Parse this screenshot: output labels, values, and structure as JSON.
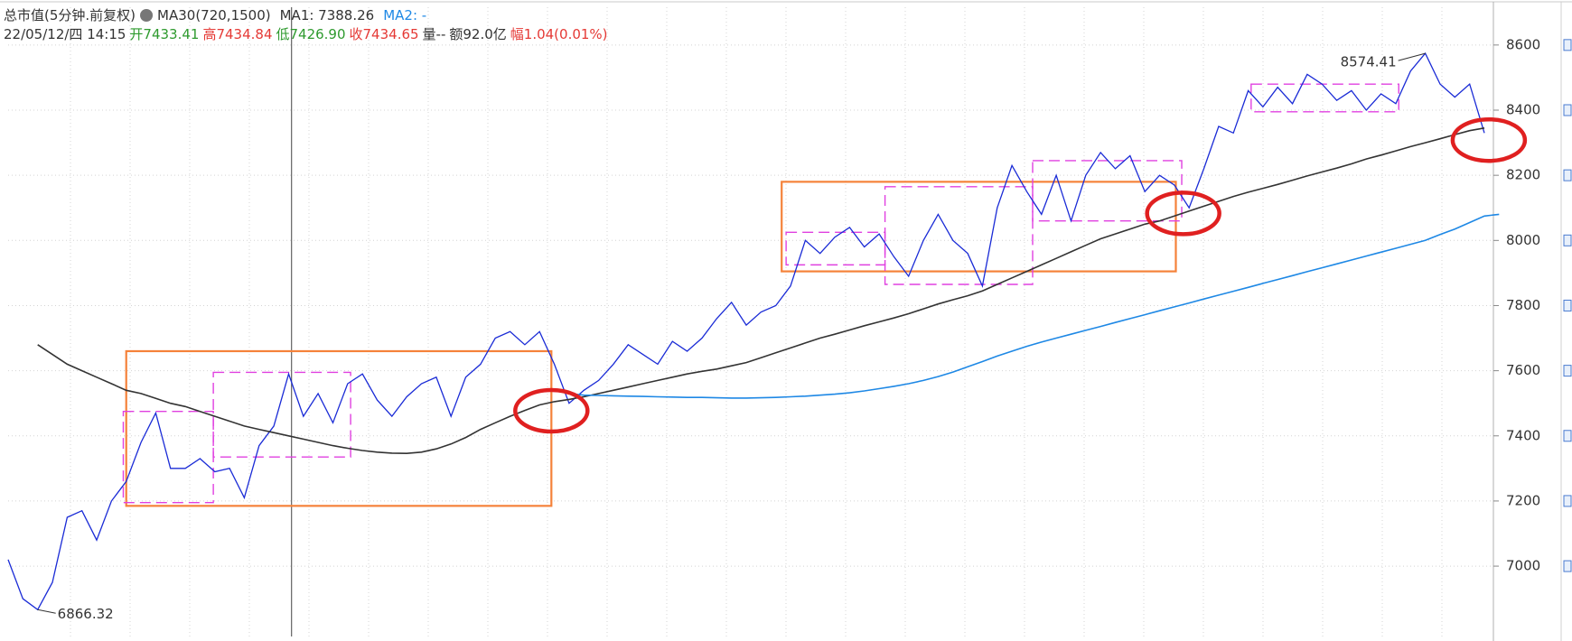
{
  "chart_data": {
    "type": "line",
    "title": "总市值(5分钟.前复权)",
    "indicator": {
      "name": "MA30(720,1500)",
      "items": [
        {
          "text": "MA1: 7388.26",
          "color": "#333333"
        },
        {
          "text": "MA2: -",
          "color": "#1e88e5"
        }
      ]
    },
    "info": [
      {
        "text": "22/05/12/四 14:15",
        "color": "#333333"
      },
      {
        "text": "开7433.41",
        "color": "#2e9a2e"
      },
      {
        "text": "高7434.84",
        "color": "#e53935"
      },
      {
        "text": "低7426.90",
        "color": "#2e9a2e"
      },
      {
        "text": "收7434.65",
        "color": "#e53935"
      },
      {
        "text": "量--",
        "color": "#333333"
      },
      {
        "text": "额92.0亿",
        "color": "#333333"
      },
      {
        "text": "幅1.04(0.01%)",
        "color": "#e53935"
      }
    ],
    "ylim": [
      6784,
      8716
    ],
    "yticks": [
      7000,
      7200,
      7400,
      7600,
      7800,
      8000,
      8200,
      8400,
      8600
    ],
    "grid": true,
    "series": [
      {
        "color": "#1a2bd6",
        "values": [
          7020,
          6900,
          6866.32,
          6950,
          7150,
          7170,
          7080,
          7200,
          7260,
          7380,
          7470,
          7300,
          7300,
          7330,
          7290,
          7300,
          7210,
          7370,
          7430,
          7590,
          7460,
          7530,
          7440,
          7560,
          7590,
          7510,
          7460,
          7520,
          7560,
          7580,
          7460,
          7580,
          7620,
          7700,
          7720,
          7680,
          7720,
          7620,
          7500,
          7540,
          7570,
          7620,
          7680,
          7650,
          7620,
          7690,
          7660,
          7700,
          7760,
          7810,
          7740,
          7780,
          7800,
          7860,
          8000,
          7960,
          8010,
          8040,
          7980,
          8020,
          7950,
          7890,
          8000,
          8080,
          8000,
          7960,
          7860,
          8100,
          8230,
          8150,
          8080,
          8200,
          8060,
          8200,
          8270,
          8220,
          8260,
          8150,
          8200,
          8170,
          8100,
          8220,
          8350,
          8330,
          8460,
          8410,
          8470,
          8420,
          8510,
          8480,
          8430,
          8460,
          8400,
          8450,
          8420,
          8520,
          8574.41,
          8480,
          8440,
          8480,
          8330
        ]
      },
      {
        "color": "#333333",
        "values": [
          null,
          null,
          7680,
          7650,
          7620,
          7600,
          7580,
          7560,
          7540,
          7530,
          7515,
          7500,
          7490,
          7475,
          7460,
          7445,
          7430,
          7420,
          7410,
          7400,
          7390,
          7380,
          7370,
          7362,
          7355,
          7350,
          7347,
          7346,
          7350,
          7360,
          7375,
          7395,
          7420,
          7440,
          7460,
          7478,
          7495,
          7505,
          7512,
          7520,
          7530,
          7540,
          7550,
          7560,
          7570,
          7580,
          7590,
          7598,
          7605,
          7615,
          7625,
          7640,
          7655,
          7670,
          7685,
          7700,
          7712,
          7725,
          7738,
          7750,
          7762,
          7775,
          7790,
          7805,
          7818,
          7830,
          7845,
          7865,
          7885,
          7905,
          7925,
          7945,
          7965,
          7985,
          8005,
          8020,
          8035,
          8050,
          8060,
          8075,
          8090,
          8105,
          8120,
          8135,
          8148,
          8160,
          8172,
          8185,
          8198,
          8210,
          8222,
          8235,
          8250,
          8262,
          8275,
          8288,
          8300,
          8312,
          8325,
          8337,
          8345
        ]
      },
      {
        "color": "#1e88e5",
        "values": [
          null,
          null,
          null,
          null,
          null,
          null,
          null,
          null,
          null,
          null,
          null,
          null,
          null,
          null,
          null,
          null,
          null,
          null,
          null,
          null,
          null,
          null,
          null,
          null,
          null,
          null,
          null,
          null,
          null,
          null,
          null,
          null,
          null,
          null,
          null,
          null,
          null,
          7540,
          7530,
          7525,
          7524,
          7523,
          7522,
          7521,
          7520,
          7519,
          7518,
          7518,
          7517,
          7516,
          7516,
          7517,
          7518,
          7520,
          7522,
          7525,
          7528,
          7532,
          7538,
          7545,
          7552,
          7560,
          7570,
          7582,
          7596,
          7612,
          7628,
          7645,
          7660,
          7675,
          7688,
          7700,
          7712,
          7724,
          7736,
          7748,
          7760,
          7772,
          7784,
          7796,
          7808,
          7820,
          7832,
          7844,
          7856,
          7868,
          7880,
          7892,
          7904,
          7916,
          7928,
          7940,
          7952,
          7964,
          7976,
          7988,
          8000,
          8018,
          8035,
          8055,
          8075,
          8080
        ]
      }
    ],
    "zones": [
      {
        "x": [
          8,
          36.8
        ],
        "y": [
          7185,
          7660
        ],
        "color": "#f5823a",
        "dashed": false
      },
      {
        "x": [
          52.4,
          79.1
        ],
        "y": [
          7905,
          8180
        ],
        "color": "#f5823a",
        "dashed": false
      },
      {
        "x": [
          7.8,
          13.9
        ],
        "y": [
          7195,
          7475
        ],
        "color": "#e040e0",
        "dashed": true
      },
      {
        "x": [
          13.9,
          23.2
        ],
        "y": [
          7335,
          7595
        ],
        "color": "#e040e0",
        "dashed": true
      },
      {
        "x": [
          52.7,
          59.4
        ],
        "y": [
          7925,
          8025
        ],
        "color": "#e040e0",
        "dashed": true
      },
      {
        "x": [
          59.4,
          69.4
        ],
        "y": [
          7865,
          8165
        ],
        "color": "#e040e0",
        "dashed": true
      },
      {
        "x": [
          69.4,
          79.5
        ],
        "y": [
          8060,
          8245
        ],
        "color": "#e040e0",
        "dashed": true
      },
      {
        "x": [
          84.2,
          94.2
        ],
        "y": [
          8395,
          8480
        ],
        "color": "#e040e0",
        "dashed": true
      }
    ],
    "highlights": [
      {
        "x": 36.8,
        "value": 7477,
        "color": "#e02020"
      },
      {
        "x": 79.6,
        "value": 8083,
        "color": "#e02020"
      },
      {
        "x": 100.3,
        "value": 8308,
        "color": "#e02020"
      }
    ],
    "cursor_x": 19.2
  }
}
